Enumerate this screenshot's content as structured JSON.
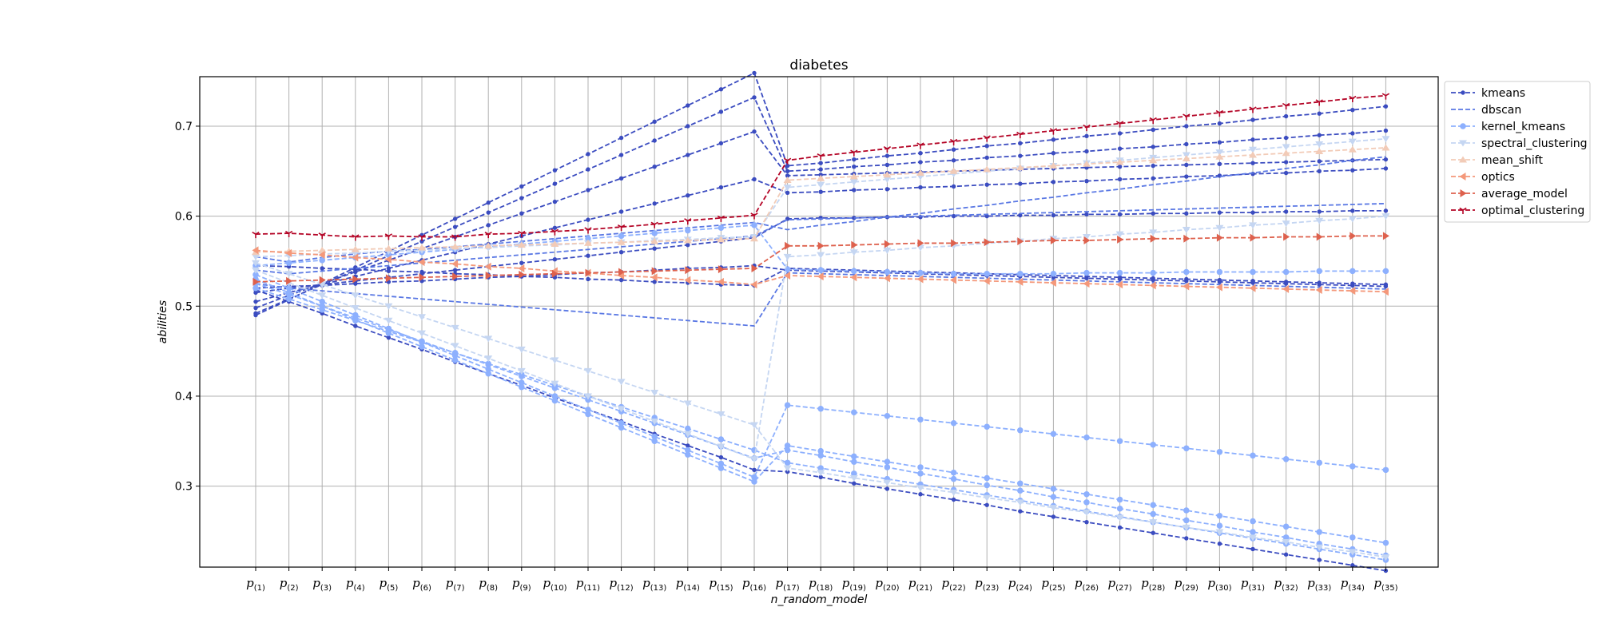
{
  "chart_data": {
    "type": "line",
    "title": "diabetes",
    "xlabel": "n_random_model",
    "ylabel": "abilities",
    "ylim": [
      0.21,
      0.755
    ],
    "yticks": [
      0.3,
      0.4,
      0.5,
      0.6,
      0.7
    ],
    "ytick_labels": [
      "0.3",
      "0.4",
      "0.5",
      "0.6",
      "0.7"
    ],
    "x_tick_base": "p",
    "x_tick_subs": [
      "(1)",
      "(2)",
      "(3)",
      "(4)",
      "(5)",
      "(6)",
      "(7)",
      "(8)",
      "(9)",
      "(10)",
      "(11)",
      "(12)",
      "(13)",
      "(14)",
      "(15)",
      "(16)",
      "(17)",
      "(18)",
      "(19)",
      "(20)",
      "(21)",
      "(22)",
      "(23)",
      "(24)",
      "(25)",
      "(26)",
      "(27)",
      "(28)",
      "(29)",
      "(30)",
      "(31)",
      "(32)",
      "(33)",
      "(34)",
      "(35)"
    ],
    "grid": true,
    "legend_position": "outside-top-right",
    "legend": [
      {
        "label": "kmeans",
        "color": "#3b4cc0",
        "marker": "dot"
      },
      {
        "label": "dbscan",
        "color": "#5a78e4",
        "marker": "none"
      },
      {
        "label": "kernel_kmeans",
        "color": "#8db0fe",
        "marker": "circle"
      },
      {
        "label": "spectral_clustering",
        "color": "#c5d6f2",
        "marker": "triangle-down"
      },
      {
        "label": "mean_shift",
        "color": "#f2cbb7",
        "marker": "triangle-up"
      },
      {
        "label": "optics",
        "color": "#f4987a",
        "marker": "triangle-left"
      },
      {
        "label": "average_model",
        "color": "#de614d",
        "marker": "triangle-right"
      },
      {
        "label": "optimal_clustering",
        "color": "#b40426",
        "marker": "tri-down"
      }
    ],
    "series": [
      {
        "color": "#3b4cc0",
        "marker": "dot",
        "values": [
          0.49,
          0.507,
          0.525,
          0.543,
          0.561,
          0.579,
          0.597,
          0.615,
          0.633,
          0.651,
          0.669,
          0.687,
          0.705,
          0.723,
          0.741,
          0.759,
          0.656,
          0.659,
          0.663,
          0.667,
          0.67,
          0.674,
          0.678,
          0.681,
          0.685,
          0.689,
          0.692,
          0.696,
          0.7,
          0.703,
          0.707,
          0.711,
          0.714,
          0.718,
          0.722
        ]
      },
      {
        "color": "#3b4cc0",
        "marker": "dot",
        "values": [
          0.492,
          0.508,
          0.524,
          0.54,
          0.556,
          0.572,
          0.588,
          0.604,
          0.62,
          0.636,
          0.652,
          0.668,
          0.684,
          0.7,
          0.716,
          0.732,
          0.65,
          0.652,
          0.655,
          0.657,
          0.66,
          0.662,
          0.665,
          0.667,
          0.67,
          0.672,
          0.675,
          0.677,
          0.68,
          0.682,
          0.685,
          0.687,
          0.69,
          0.692,
          0.695
        ]
      },
      {
        "color": "#3b4cc0",
        "marker": "dot",
        "values": [
          0.498,
          0.512,
          0.525,
          0.538,
          0.551,
          0.564,
          0.577,
          0.59,
          0.603,
          0.616,
          0.629,
          0.642,
          0.655,
          0.668,
          0.681,
          0.694,
          0.645,
          0.646,
          0.647,
          0.648,
          0.649,
          0.65,
          0.651,
          0.652,
          0.653,
          0.654,
          0.655,
          0.656,
          0.657,
          0.658,
          0.659,
          0.66,
          0.661,
          0.662,
          0.663
        ]
      },
      {
        "color": "#3b4cc0",
        "marker": "dot",
        "values": [
          0.505,
          0.515,
          0.524,
          0.533,
          0.542,
          0.551,
          0.56,
          0.569,
          0.578,
          0.587,
          0.596,
          0.605,
          0.614,
          0.623,
          0.632,
          0.641,
          0.626,
          0.627,
          0.629,
          0.63,
          0.632,
          0.633,
          0.635,
          0.636,
          0.638,
          0.639,
          0.641,
          0.642,
          0.644,
          0.645,
          0.647,
          0.648,
          0.65,
          0.651,
          0.653
        ]
      },
      {
        "color": "#3b4cc0",
        "marker": "dot",
        "values": [
          0.515,
          0.52,
          0.524,
          0.528,
          0.532,
          0.536,
          0.54,
          0.544,
          0.548,
          0.552,
          0.556,
          0.56,
          0.564,
          0.568,
          0.572,
          0.576,
          0.597,
          0.598,
          0.598,
          0.599,
          0.599,
          0.6,
          0.6,
          0.601,
          0.601,
          0.602,
          0.602,
          0.603,
          0.603,
          0.604,
          0.604,
          0.605,
          0.605,
          0.606,
          0.606
        ]
      },
      {
        "color": "#3b4cc0",
        "marker": "dot",
        "values": [
          0.52,
          0.522,
          0.523,
          0.525,
          0.527,
          0.528,
          0.53,
          0.532,
          0.533,
          0.535,
          0.537,
          0.538,
          0.54,
          0.542,
          0.543,
          0.545,
          0.54,
          0.539,
          0.538,
          0.537,
          0.536,
          0.535,
          0.534,
          0.533,
          0.532,
          0.531,
          0.53,
          0.529,
          0.528,
          0.527,
          0.526,
          0.525,
          0.524,
          0.523,
          0.522
        ]
      },
      {
        "color": "#3b4cc0",
        "marker": "dot",
        "values": [
          0.545,
          0.544,
          0.542,
          0.541,
          0.539,
          0.538,
          0.536,
          0.535,
          0.533,
          0.532,
          0.53,
          0.529,
          0.527,
          0.526,
          0.524,
          0.523,
          0.542,
          0.541,
          0.54,
          0.539,
          0.538,
          0.537,
          0.536,
          0.535,
          0.534,
          0.533,
          0.532,
          0.531,
          0.53,
          0.529,
          0.528,
          0.527,
          0.526,
          0.525,
          0.524
        ]
      },
      {
        "color": "#3b4cc0",
        "marker": "dot",
        "values": [
          0.518,
          0.505,
          0.492,
          0.478,
          0.465,
          0.452,
          0.438,
          0.425,
          0.412,
          0.398,
          0.385,
          0.372,
          0.358,
          0.345,
          0.332,
          0.318,
          0.316,
          0.31,
          0.303,
          0.297,
          0.291,
          0.285,
          0.279,
          0.272,
          0.266,
          0.26,
          0.254,
          0.248,
          0.242,
          0.236,
          0.23,
          0.224,
          0.218,
          0.212,
          0.206
        ]
      },
      {
        "color": "#5a78e4",
        "marker": "none",
        "values": [
          0.555,
          0.549,
          0.554,
          0.558,
          0.561,
          0.563,
          0.566,
          0.569,
          0.572,
          0.575,
          0.578,
          0.581,
          0.584,
          0.587,
          0.59,
          0.593,
          0.585,
          0.59,
          0.594,
          0.599,
          0.603,
          0.608,
          0.612,
          0.617,
          0.621,
          0.626,
          0.63,
          0.635,
          0.639,
          0.644,
          0.648,
          0.653,
          0.657,
          0.662,
          0.666
        ]
      },
      {
        "color": "#5a78e4",
        "marker": "none",
        "values": [
          0.54,
          0.536,
          0.539,
          0.542,
          0.545,
          0.548,
          0.551,
          0.554,
          0.557,
          0.56,
          0.563,
          0.566,
          0.569,
          0.572,
          0.575,
          0.578,
          0.596,
          0.597,
          0.598,
          0.599,
          0.6,
          0.601,
          0.602,
          0.603,
          0.604,
          0.605,
          0.606,
          0.607,
          0.608,
          0.609,
          0.61,
          0.611,
          0.612,
          0.613,
          0.614
        ]
      },
      {
        "color": "#5a78e4",
        "marker": "none",
        "values": [
          0.525,
          0.52,
          0.517,
          0.514,
          0.511,
          0.508,
          0.505,
          0.502,
          0.499,
          0.496,
          0.493,
          0.49,
          0.487,
          0.484,
          0.481,
          0.478,
          0.537,
          0.536,
          0.535,
          0.534,
          0.533,
          0.532,
          0.531,
          0.53,
          0.529,
          0.528,
          0.527,
          0.526,
          0.525,
          0.524,
          0.523,
          0.522,
          0.521,
          0.52,
          0.519
        ]
      },
      {
        "color": "#8db0fe",
        "marker": "circle",
        "values": [
          0.535,
          0.52,
          0.505,
          0.49,
          0.475,
          0.46,
          0.445,
          0.43,
          0.415,
          0.4,
          0.385,
          0.37,
          0.355,
          0.34,
          0.325,
          0.31,
          0.39,
          0.386,
          0.382,
          0.378,
          0.374,
          0.37,
          0.366,
          0.362,
          0.358,
          0.354,
          0.35,
          0.346,
          0.342,
          0.338,
          0.334,
          0.33,
          0.326,
          0.322,
          0.318
        ]
      },
      {
        "color": "#8db0fe",
        "marker": "circle",
        "values": [
          0.53,
          0.515,
          0.5,
          0.485,
          0.47,
          0.455,
          0.44,
          0.425,
          0.41,
          0.395,
          0.38,
          0.365,
          0.35,
          0.335,
          0.32,
          0.305,
          0.345,
          0.339,
          0.333,
          0.327,
          0.321,
          0.315,
          0.309,
          0.303,
          0.297,
          0.291,
          0.285,
          0.279,
          0.273,
          0.267,
          0.261,
          0.255,
          0.249,
          0.243,
          0.237
        ]
      },
      {
        "color": "#8db0fe",
        "marker": "circle",
        "values": [
          0.525,
          0.513,
          0.5,
          0.487,
          0.474,
          0.461,
          0.448,
          0.435,
          0.422,
          0.409,
          0.396,
          0.383,
          0.37,
          0.357,
          0.344,
          0.331,
          0.34,
          0.334,
          0.327,
          0.321,
          0.314,
          0.308,
          0.301,
          0.295,
          0.288,
          0.282,
          0.275,
          0.269,
          0.262,
          0.256,
          0.249,
          0.243,
          0.236,
          0.23,
          0.223
        ]
      },
      {
        "color": "#8db0fe",
        "marker": "circle",
        "values": [
          0.52,
          0.508,
          0.496,
          0.484,
          0.472,
          0.46,
          0.448,
          0.436,
          0.424,
          0.412,
          0.4,
          0.388,
          0.376,
          0.364,
          0.352,
          0.34,
          0.326,
          0.32,
          0.314,
          0.308,
          0.302,
          0.296,
          0.29,
          0.284,
          0.278,
          0.272,
          0.266,
          0.26,
          0.254,
          0.248,
          0.242,
          0.236,
          0.23,
          0.224,
          0.218
        ]
      },
      {
        "color": "#8db0fe",
        "marker": "circle",
        "values": [
          0.545,
          0.548,
          0.551,
          0.554,
          0.557,
          0.56,
          0.563,
          0.566,
          0.569,
          0.572,
          0.575,
          0.578,
          0.581,
          0.584,
          0.587,
          0.59,
          0.541,
          0.54,
          0.539,
          0.538,
          0.537,
          0.536,
          0.536,
          0.536,
          0.536,
          0.537,
          0.537,
          0.537,
          0.538,
          0.538,
          0.538,
          0.538,
          0.539,
          0.539,
          0.539
        ]
      },
      {
        "color": "#c5d6f2",
        "marker": "triangle-down",
        "values": [
          0.548,
          0.536,
          0.524,
          0.512,
          0.5,
          0.488,
          0.476,
          0.464,
          0.452,
          0.44,
          0.428,
          0.416,
          0.404,
          0.392,
          0.38,
          0.368,
          0.32,
          0.315,
          0.309,
          0.304,
          0.298,
          0.293,
          0.287,
          0.282,
          0.276,
          0.271,
          0.265,
          0.26,
          0.254,
          0.249,
          0.243,
          0.238,
          0.232,
          0.227,
          0.221
        ]
      },
      {
        "color": "#c5d6f2",
        "marker": "triangle-down",
        "values": [
          0.54,
          0.526,
          0.512,
          0.498,
          0.484,
          0.47,
          0.456,
          0.442,
          0.428,
          0.414,
          0.4,
          0.386,
          0.372,
          0.358,
          0.344,
          0.33,
          0.555,
          0.557,
          0.56,
          0.562,
          0.565,
          0.567,
          0.57,
          0.572,
          0.575,
          0.577,
          0.58,
          0.582,
          0.585,
          0.587,
          0.59,
          0.592,
          0.595,
          0.597,
          0.6
        ]
      },
      {
        "color": "#c5d6f2",
        "marker": "triangle-down",
        "values": [
          0.555,
          0.556,
          0.558,
          0.559,
          0.561,
          0.562,
          0.564,
          0.565,
          0.567,
          0.568,
          0.57,
          0.571,
          0.573,
          0.574,
          0.576,
          0.577,
          0.632,
          0.635,
          0.638,
          0.641,
          0.644,
          0.647,
          0.65,
          0.653,
          0.656,
          0.659,
          0.662,
          0.665,
          0.668,
          0.671,
          0.674,
          0.677,
          0.68,
          0.683,
          0.686
        ]
      },
      {
        "color": "#f2cbb7",
        "marker": "triangle-up",
        "values": [
          0.56,
          0.561,
          0.562,
          0.563,
          0.564,
          0.565,
          0.566,
          0.567,
          0.568,
          0.569,
          0.57,
          0.571,
          0.572,
          0.573,
          0.574,
          0.575,
          0.64,
          0.642,
          0.644,
          0.646,
          0.648,
          0.65,
          0.652,
          0.654,
          0.656,
          0.658,
          0.66,
          0.662,
          0.664,
          0.666,
          0.668,
          0.67,
          0.672,
          0.674,
          0.676
        ]
      },
      {
        "color": "#f4987a",
        "marker": "triangle-left",
        "values": [
          0.562,
          0.559,
          0.557,
          0.554,
          0.552,
          0.549,
          0.547,
          0.544,
          0.542,
          0.539,
          0.537,
          0.534,
          0.532,
          0.529,
          0.527,
          0.524,
          0.534,
          0.533,
          0.532,
          0.531,
          0.53,
          0.529,
          0.528,
          0.527,
          0.526,
          0.525,
          0.524,
          0.523,
          0.522,
          0.521,
          0.52,
          0.519,
          0.518,
          0.517,
          0.516
        ]
      },
      {
        "color": "#de614d",
        "marker": "triangle-right",
        "values": [
          0.527,
          0.528,
          0.529,
          0.53,
          0.531,
          0.532,
          0.533,
          0.534,
          0.535,
          0.536,
          0.537,
          0.538,
          0.539,
          0.54,
          0.541,
          0.542,
          0.567,
          0.567,
          0.568,
          0.569,
          0.57,
          0.57,
          0.571,
          0.572,
          0.573,
          0.573,
          0.574,
          0.575,
          0.575,
          0.576,
          0.576,
          0.577,
          0.577,
          0.578,
          0.578
        ]
      },
      {
        "color": "#b40426",
        "marker": "tri-down",
        "values": [
          0.58,
          0.581,
          0.579,
          0.577,
          0.578,
          0.577,
          0.577,
          0.58,
          0.581,
          0.583,
          0.585,
          0.588,
          0.591,
          0.595,
          0.598,
          0.601,
          0.662,
          0.667,
          0.671,
          0.675,
          0.679,
          0.683,
          0.687,
          0.691,
          0.695,
          0.699,
          0.703,
          0.707,
          0.711,
          0.715,
          0.719,
          0.723,
          0.727,
          0.731,
          0.734
        ]
      }
    ]
  }
}
